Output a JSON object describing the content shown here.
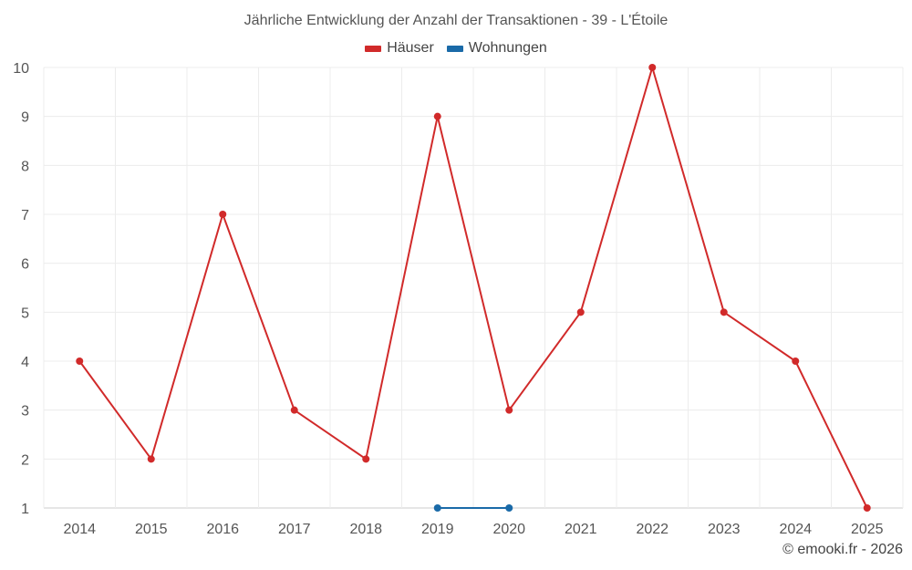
{
  "chart_data": {
    "type": "line",
    "title": "Jährliche Entwicklung der Anzahl der Transaktionen - 39 - L'Étoile",
    "categories": [
      "2014",
      "2015",
      "2016",
      "2017",
      "2018",
      "2019",
      "2020",
      "2021",
      "2022",
      "2023",
      "2024",
      "2025"
    ],
    "series": [
      {
        "name": "Häuser",
        "color": "#d12a2a",
        "values": [
          4,
          2,
          7,
          3,
          2,
          9,
          3,
          5,
          10,
          5,
          4,
          1
        ]
      },
      {
        "name": "Wohnungen",
        "color": "#1a6aa8",
        "values": [
          null,
          null,
          null,
          null,
          null,
          1,
          1,
          null,
          null,
          null,
          null,
          null
        ]
      }
    ],
    "ylim": [
      1,
      10
    ],
    "yticks": [
      1,
      2,
      3,
      4,
      5,
      6,
      7,
      8,
      9,
      10
    ],
    "grid": true,
    "legend_position": "top-center"
  },
  "credit": "© emooki.fr - 2026"
}
